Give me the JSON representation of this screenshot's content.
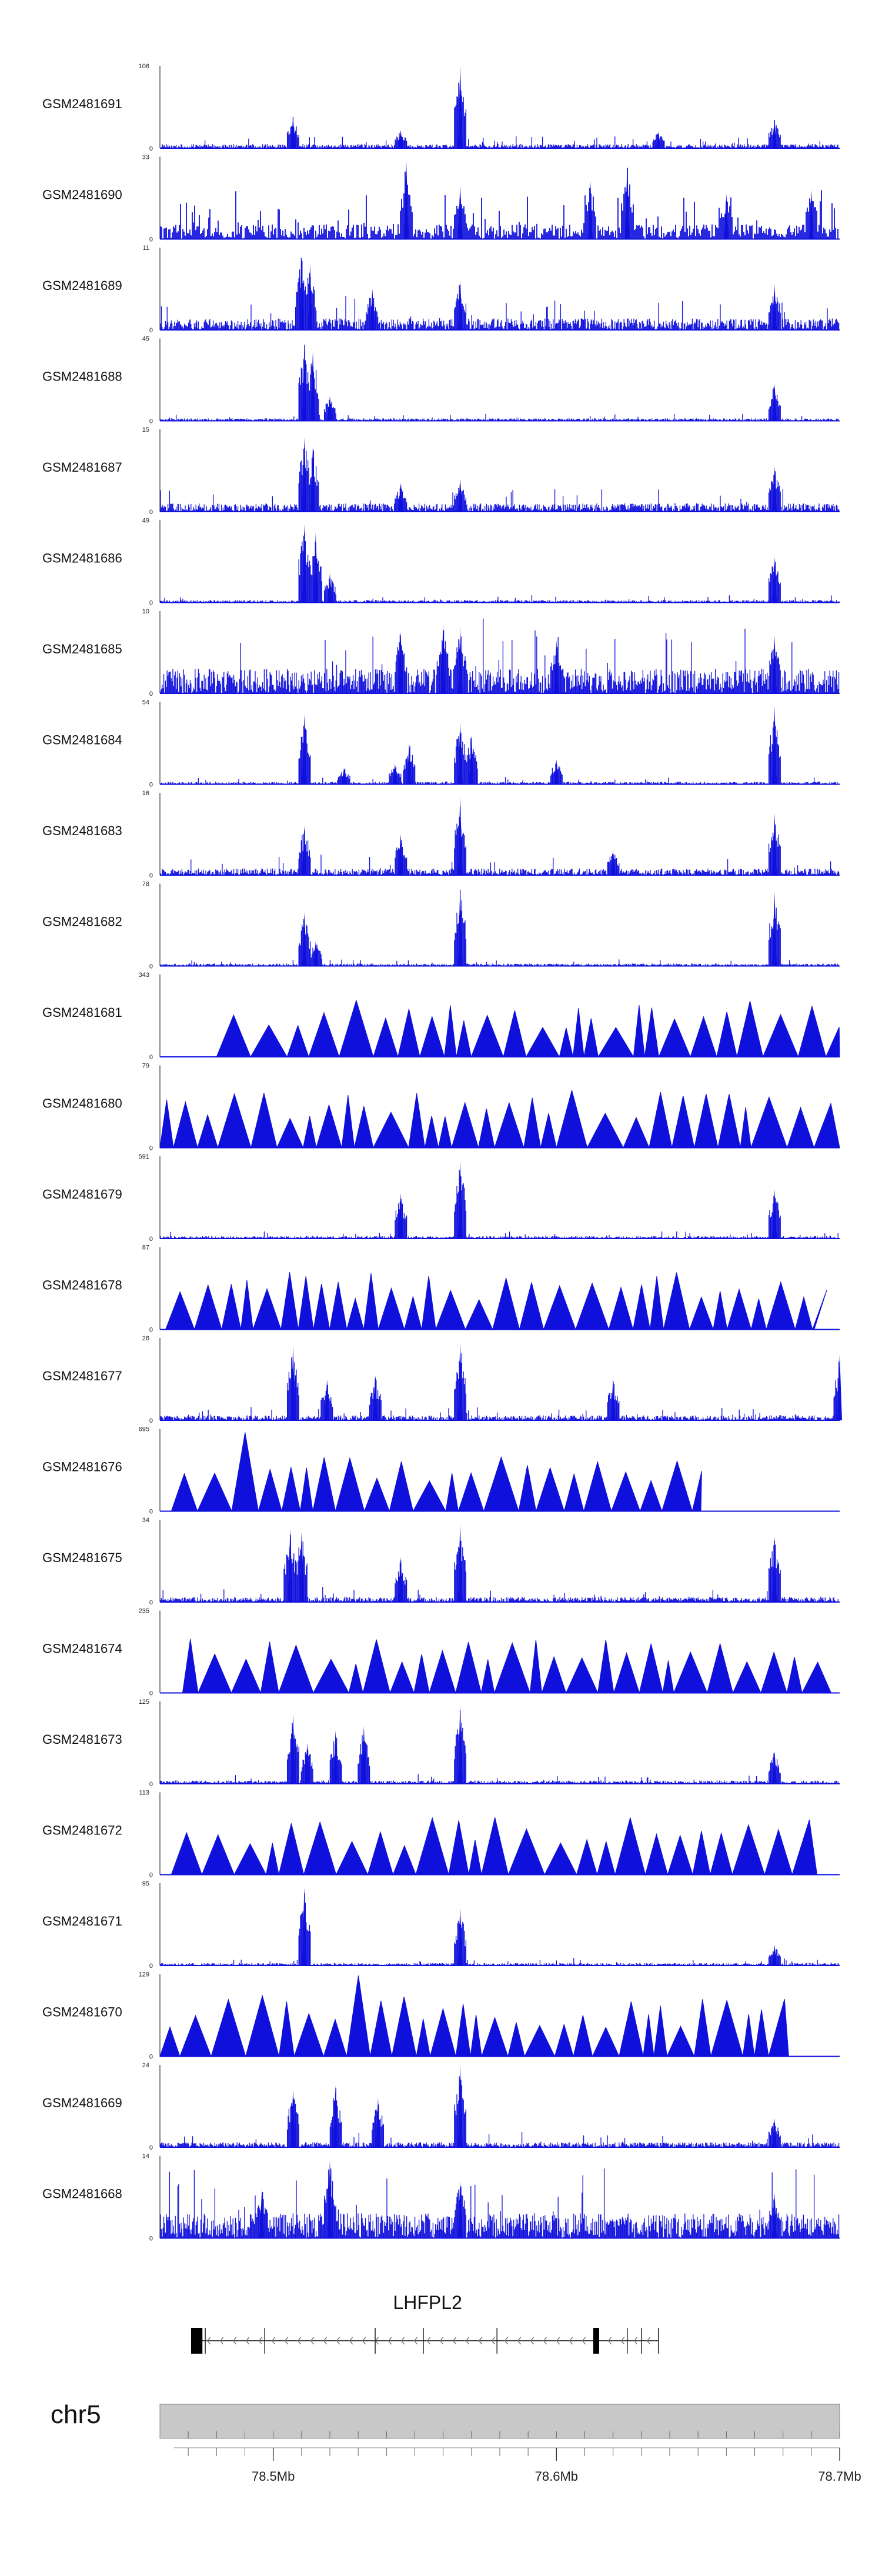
{
  "chart_data": {
    "type": "area",
    "title": "",
    "chromosome": "chr5",
    "x_range_mb": [
      78.46,
      78.7
    ],
    "axis_ticks": [
      {
        "pos": 78.5,
        "label": "78.5Mb"
      },
      {
        "pos": 78.6,
        "label": "78.6Mb"
      },
      {
        "pos": 78.7,
        "label": "78.7Mb"
      }
    ],
    "gene": {
      "name": "LHFPL2",
      "start_mb": 78.473,
      "end_mb": 78.636,
      "strand": "-",
      "exons_mb": [
        [
          78.471,
          78.475
        ],
        [
          78.613,
          78.615
        ]
      ],
      "intron_ticks_mb": [
        78.476,
        78.497,
        78.536,
        78.553,
        78.579,
        78.625,
        78.63,
        78.636
      ]
    },
    "tracks": [
      {
        "name": "GSM2481691",
        "ymax": 106,
        "ymax_label": "106",
        "style": "dense",
        "noise": 0.05,
        "peaks": [
          [
            78.507,
            0.38
          ],
          [
            78.545,
            0.22
          ],
          [
            78.566,
            1.0
          ],
          [
            78.636,
            0.2
          ],
          [
            78.677,
            0.35
          ]
        ]
      },
      {
        "name": "GSM2481690",
        "ymax": 33,
        "ymax_label": "33",
        "style": "spiky",
        "noise": 0.18,
        "peaks": [
          [
            78.547,
            0.95
          ],
          [
            78.566,
            0.65
          ],
          [
            78.612,
            0.7
          ],
          [
            78.625,
            0.9
          ],
          [
            78.66,
            0.55
          ],
          [
            78.69,
            0.6
          ]
        ]
      },
      {
        "name": "GSM2481689",
        "ymax": 11,
        "ymax_label": "11",
        "style": "dense",
        "noise": 0.14,
        "peaks": [
          [
            78.51,
            0.9
          ],
          [
            78.513,
            0.8
          ],
          [
            78.535,
            0.5
          ],
          [
            78.566,
            0.6
          ],
          [
            78.677,
            0.55
          ]
        ]
      },
      {
        "name": "GSM2481688",
        "ymax": 45,
        "ymax_label": "45",
        "style": "dense",
        "noise": 0.03,
        "peaks": [
          [
            78.511,
            0.95
          ],
          [
            78.514,
            0.85
          ],
          [
            78.52,
            0.3
          ],
          [
            78.677,
            0.45
          ]
        ]
      },
      {
        "name": "GSM2481687",
        "ymax": 15,
        "ymax_label": "15",
        "style": "dense",
        "noise": 0.1,
        "peaks": [
          [
            78.511,
            0.9
          ],
          [
            78.514,
            0.8
          ],
          [
            78.545,
            0.35
          ],
          [
            78.566,
            0.4
          ],
          [
            78.677,
            0.55
          ]
        ]
      },
      {
        "name": "GSM2481686",
        "ymax": 49,
        "ymax_label": "49",
        "style": "dense",
        "noise": 0.03,
        "peaks": [
          [
            78.511,
            0.95
          ],
          [
            78.515,
            0.85
          ],
          [
            78.52,
            0.35
          ],
          [
            78.677,
            0.55
          ]
        ]
      },
      {
        "name": "GSM2481685",
        "ymax": 10,
        "ymax_label": "10",
        "style": "dense",
        "noise": 0.3,
        "peaks": [
          [
            78.545,
            0.75
          ],
          [
            78.56,
            0.85
          ],
          [
            78.566,
            0.8
          ],
          [
            78.6,
            0.65
          ],
          [
            78.677,
            0.7
          ]
        ]
      },
      {
        "name": "GSM2481684",
        "ymax": 54,
        "ymax_label": "54",
        "style": "dense",
        "noise": 0.03,
        "peaks": [
          [
            78.511,
            0.85
          ],
          [
            78.525,
            0.2
          ],
          [
            78.543,
            0.25
          ],
          [
            78.548,
            0.5
          ],
          [
            78.566,
            0.75
          ],
          [
            78.57,
            0.6
          ],
          [
            78.6,
            0.3
          ],
          [
            78.677,
            0.95
          ]
        ]
      },
      {
        "name": "GSM2481683",
        "ymax": 16,
        "ymax_label": "16",
        "style": "dense",
        "noise": 0.08,
        "peaks": [
          [
            78.511,
            0.6
          ],
          [
            78.545,
            0.5
          ],
          [
            78.566,
            0.95
          ],
          [
            78.62,
            0.3
          ],
          [
            78.677,
            0.75
          ]
        ]
      },
      {
        "name": "GSM2481682",
        "ymax": 78,
        "ymax_label": "78",
        "style": "dense",
        "noise": 0.03,
        "peaks": [
          [
            78.511,
            0.65
          ],
          [
            78.515,
            0.3
          ],
          [
            78.566,
            0.95
          ],
          [
            78.677,
            0.9
          ]
        ]
      },
      {
        "name": "GSM2481681",
        "ymax": 343,
        "ymax_label": "343",
        "style": "sparse",
        "x_start_mb": 78.48,
        "x_end_mb": 78.7,
        "peaks": [
          [
            78.552,
            0.75
          ],
          [
            78.677,
            1.0
          ]
        ]
      },
      {
        "name": "GSM2481680",
        "ymax": 79,
        "ymax_label": "79",
        "style": "sparse",
        "x_start_mb": 78.46,
        "x_end_mb": 78.7,
        "peaks": [
          [
            78.466,
            1.0
          ],
          [
            78.51,
            0.9
          ],
          [
            78.658,
            0.9
          ],
          [
            78.68,
            0.85
          ]
        ]
      },
      {
        "name": "GSM2481679",
        "ymax": 591,
        "ymax_label": "591",
        "style": "dense",
        "noise": 0.03,
        "peaks": [
          [
            78.545,
            0.55
          ],
          [
            78.566,
            0.95
          ],
          [
            78.677,
            0.6
          ]
        ]
      },
      {
        "name": "GSM2481678",
        "ymax": 87,
        "ymax_label": "87",
        "style": "sparse",
        "x_start_mb": 78.462,
        "x_end_mb": 78.691,
        "peaks": [
          [
            78.505,
            0.85
          ],
          [
            78.54,
            0.7
          ],
          [
            78.585,
            0.65
          ],
          [
            78.612,
            0.62
          ]
        ]
      },
      {
        "name": "GSM2481677",
        "ymax": 26,
        "ymax_label": "26",
        "style": "dense",
        "noise": 0.06,
        "peaks": [
          [
            78.507,
            0.9
          ],
          [
            78.519,
            0.5
          ],
          [
            78.536,
            0.55
          ],
          [
            78.566,
            0.95
          ],
          [
            78.62,
            0.5
          ],
          [
            78.7,
            0.8
          ]
        ]
      },
      {
        "name": "GSM2481676",
        "ymax": 695,
        "ymax_label": "695",
        "style": "sparse",
        "x_start_mb": 78.464,
        "x_end_mb": 78.651,
        "peaks": [
          [
            78.49,
            0.97
          ],
          [
            78.596,
            0.88
          ]
        ]
      },
      {
        "name": "GSM2481675",
        "ymax": 34,
        "ymax_label": "34",
        "style": "dense",
        "noise": 0.06,
        "peaks": [
          [
            78.506,
            0.9
          ],
          [
            78.51,
            0.85
          ],
          [
            78.545,
            0.55
          ],
          [
            78.566,
            0.95
          ],
          [
            78.677,
            0.8
          ]
        ]
      },
      {
        "name": "GSM2481674",
        "ymax": 235,
        "ymax_label": "235",
        "style": "sparse",
        "x_start_mb": 78.468,
        "x_end_mb": 78.697,
        "peaks": [
          [
            78.538,
            1.0
          ],
          [
            78.695,
            1.0
          ]
        ]
      },
      {
        "name": "GSM2481673",
        "ymax": 125,
        "ymax_label": "125",
        "style": "dense",
        "noise": 0.04,
        "peaks": [
          [
            78.507,
            0.85
          ],
          [
            78.512,
            0.5
          ],
          [
            78.522,
            0.65
          ],
          [
            78.532,
            0.7
          ],
          [
            78.566,
            0.95
          ],
          [
            78.677,
            0.4
          ]
        ]
      },
      {
        "name": "GSM2481672",
        "ymax": 113,
        "ymax_label": "113",
        "style": "sparse",
        "x_start_mb": 78.464,
        "x_end_mb": 78.692,
        "peaks": [
          [
            78.468,
            0.75
          ],
          [
            78.502,
            0.75
          ],
          [
            78.62,
            0.65
          ],
          [
            78.688,
            0.95
          ]
        ]
      },
      {
        "name": "GSM2481671",
        "ymax": 95,
        "ymax_label": "95",
        "style": "dense",
        "noise": 0.03,
        "peaks": [
          [
            78.511,
            0.95
          ],
          [
            78.566,
            0.7
          ],
          [
            78.677,
            0.25
          ]
        ]
      },
      {
        "name": "GSM2481670",
        "ymax": 129,
        "ymax_label": "129",
        "style": "sparse",
        "x_start_mb": 78.46,
        "x_end_mb": 78.682,
        "peaks": [
          [
            78.495,
            1.0
          ],
          [
            78.517,
            1.0
          ],
          [
            78.53,
            1.0
          ],
          [
            78.545,
            1.0
          ],
          [
            78.558,
            1.0
          ],
          [
            78.65,
            1.0
          ],
          [
            78.67,
            1.0
          ]
        ]
      },
      {
        "name": "GSM2481669",
        "ymax": 24,
        "ymax_label": "24",
        "style": "dense",
        "noise": 0.06,
        "peaks": [
          [
            78.507,
            0.7
          ],
          [
            78.522,
            0.75
          ],
          [
            78.537,
            0.6
          ],
          [
            78.566,
            1.0
          ],
          [
            78.677,
            0.35
          ]
        ]
      },
      {
        "name": "GSM2481668",
        "ymax": 14,
        "ymax_label": "14",
        "style": "dense",
        "noise": 0.3,
        "peaks": [
          [
            78.52,
            0.95
          ],
          [
            78.496,
            0.6
          ],
          [
            78.566,
            0.7
          ],
          [
            78.677,
            0.55
          ]
        ]
      }
    ]
  }
}
